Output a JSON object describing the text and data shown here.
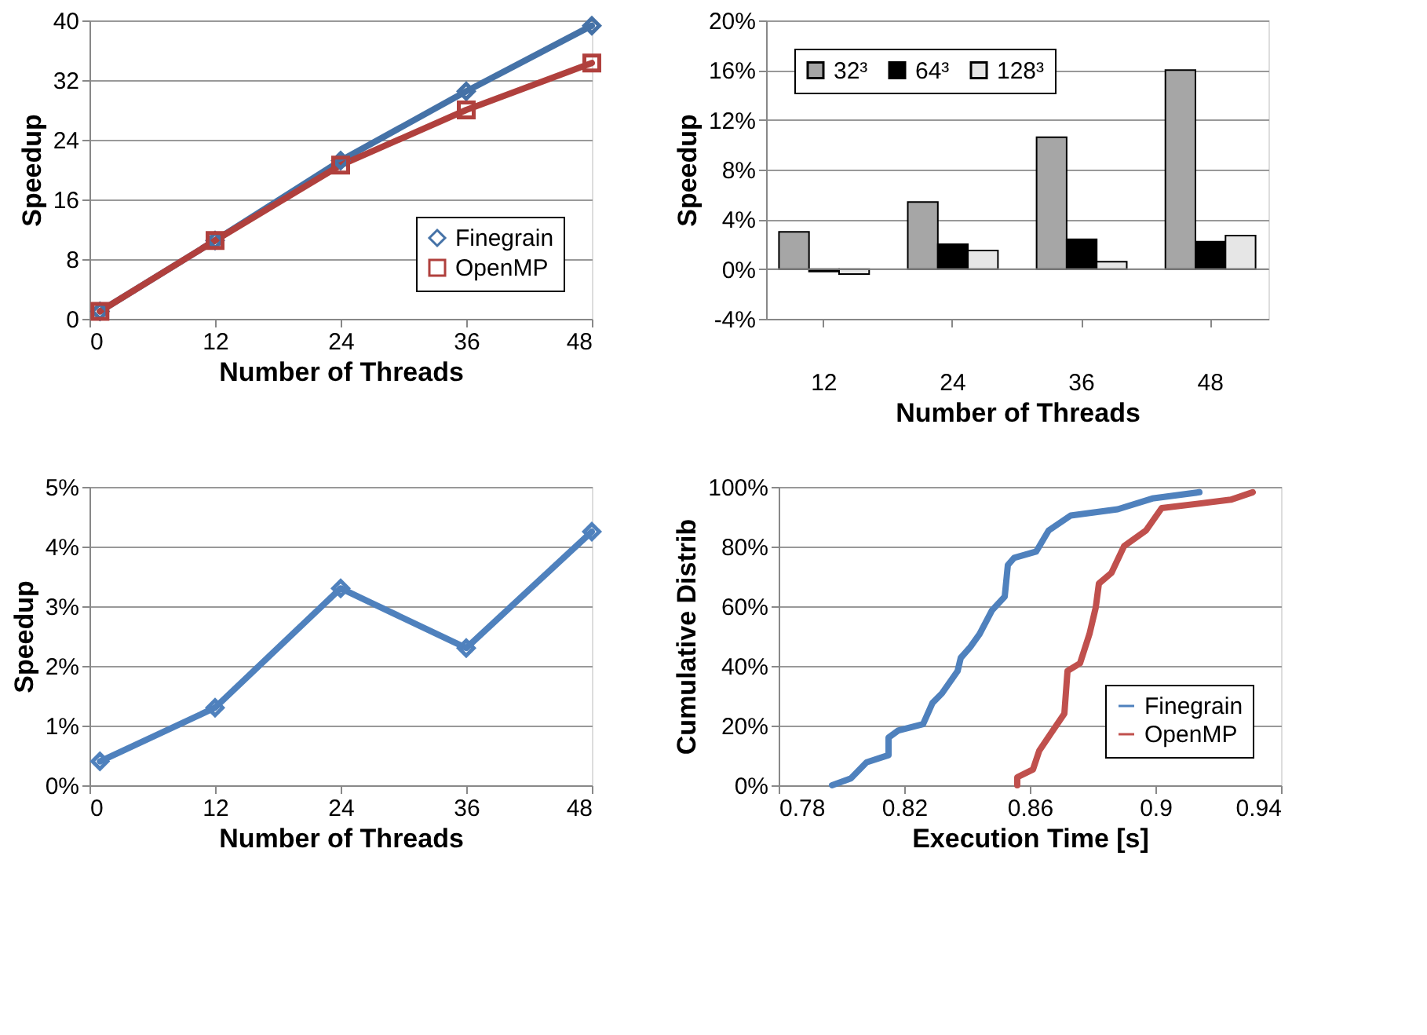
{
  "chart_data": [
    {
      "type": "line",
      "xlabel": "Number of Threads",
      "ylabel": "Speedup",
      "x": [
        1,
        12,
        24,
        36,
        48
      ],
      "xlim": [
        0,
        48
      ],
      "xticks": [
        0,
        12,
        24,
        36,
        48
      ],
      "ylim": [
        0,
        40
      ],
      "yticks": [
        0,
        8,
        16,
        24,
        32,
        40
      ],
      "grid": "y",
      "legend": "bottom right",
      "series": [
        {
          "name": "Finegrain",
          "color": "#4572a7",
          "marker": "diamond",
          "values": [
            1,
            10.5,
            21.2,
            30.5,
            39.3
          ]
        },
        {
          "name": "OpenMP",
          "color": "#b0403d",
          "marker": "square",
          "values": [
            1,
            10.5,
            20.6,
            28,
            34.3
          ]
        }
      ]
    },
    {
      "type": "bar",
      "xlabel": "Number of Threads",
      "ylabel": "Speedup",
      "categories": [
        "12",
        "24",
        "36",
        "48"
      ],
      "ylim": [
        -4,
        20
      ],
      "yticks": [
        {
          "value": -4,
          "label": "-4%"
        },
        {
          "value": 0,
          "label": "0%"
        },
        {
          "value": 4,
          "label": "4%"
        },
        {
          "value": 8,
          "label": "8%"
        },
        {
          "value": 12,
          "label": "12%"
        },
        {
          "value": 16,
          "label": "16%"
        },
        {
          "value": 20,
          "label": "20%"
        }
      ],
      "grid": "y",
      "legend": "top left",
      "series": [
        {
          "name": "32³",
          "color": "#a6a6a6",
          "values": [
            3.0,
            5.4,
            10.6,
            16.0
          ]
        },
        {
          "name": "64³",
          "color": "#000000",
          "values": [
            -0.2,
            2.0,
            2.4,
            2.2
          ]
        },
        {
          "name": "128³",
          "color": "#e6e6e6",
          "values": [
            -0.4,
            1.5,
            0.6,
            2.7
          ]
        }
      ]
    },
    {
      "type": "line",
      "xlabel": "Number of Threads",
      "ylabel": "Speedup",
      "x": [
        1,
        12,
        24,
        36,
        48
      ],
      "xlim": [
        0,
        48
      ],
      "xticks": [
        0,
        12,
        24,
        36,
        48
      ],
      "ylim": [
        0,
        5
      ],
      "yticks": [
        {
          "value": 0,
          "label": "0%"
        },
        {
          "value": 1,
          "label": "1%"
        },
        {
          "value": 2,
          "label": "2%"
        },
        {
          "value": 3,
          "label": "3%"
        },
        {
          "value": 4,
          "label": "4%"
        },
        {
          "value": 5,
          "label": "5%"
        }
      ],
      "grid": "y",
      "marker": "diamond",
      "series": [
        {
          "color": "#4f81bd",
          "values": [
            0.4,
            1.3,
            3.3,
            2.3,
            4.25
          ]
        }
      ]
    },
    {
      "type": "line",
      "xlabel": "Execution Time [s]",
      "ylabel": "Cumulative Distrib",
      "xlim": [
        0.78,
        0.94
      ],
      "xticks": [
        0.78,
        0.82,
        0.86,
        0.9,
        0.94
      ],
      "ylim": [
        0,
        100
      ],
      "yticks": [
        {
          "value": 0,
          "label": "0%"
        },
        {
          "value": 20,
          "label": "20%"
        },
        {
          "value": 40,
          "label": "40%"
        },
        {
          "value": 60,
          "label": "60%"
        },
        {
          "value": 80,
          "label": "80%"
        },
        {
          "value": 100,
          "label": "100%"
        }
      ],
      "grid": "y",
      "legend": "bottom right",
      "marker": "none",
      "series": [
        {
          "name": "Finegrain",
          "color": "#4f81bd",
          "x": [
            0.797,
            0.803,
            0.808,
            0.815,
            0.815,
            0.818,
            0.826,
            0.829,
            0.832,
            0.837,
            0.838,
            0.841,
            0.844,
            0.848,
            0.852,
            0.853,
            0.855,
            0.862,
            0.866,
            0.873,
            0.888,
            0.899,
            0.914
          ],
          "values": [
            0,
            2.3,
            7.7,
            10.1,
            16,
            18.3,
            20.5,
            27.6,
            30.8,
            38.3,
            42.7,
            46.3,
            50.7,
            58.7,
            63.2,
            73.8,
            76.2,
            78.3,
            85.4,
            90.4,
            92.5,
            96.1,
            98.2
          ]
        },
        {
          "name": "OpenMP",
          "color": "#c0504d",
          "x": [
            0.856,
            0.856,
            0.861,
            0.863,
            0.867,
            0.871,
            0.872,
            0.876,
            0.879,
            0.881,
            0.882,
            0.886,
            0.89,
            0.897,
            0.902,
            0.924,
            0.931
          ],
          "values": [
            0,
            2.7,
            5.3,
            11.6,
            17.8,
            24,
            38.3,
            40.9,
            50.7,
            59.6,
            67.6,
            71.2,
            80.1,
            85.4,
            92.9,
            95.7,
            98.2
          ]
        }
      ]
    }
  ]
}
